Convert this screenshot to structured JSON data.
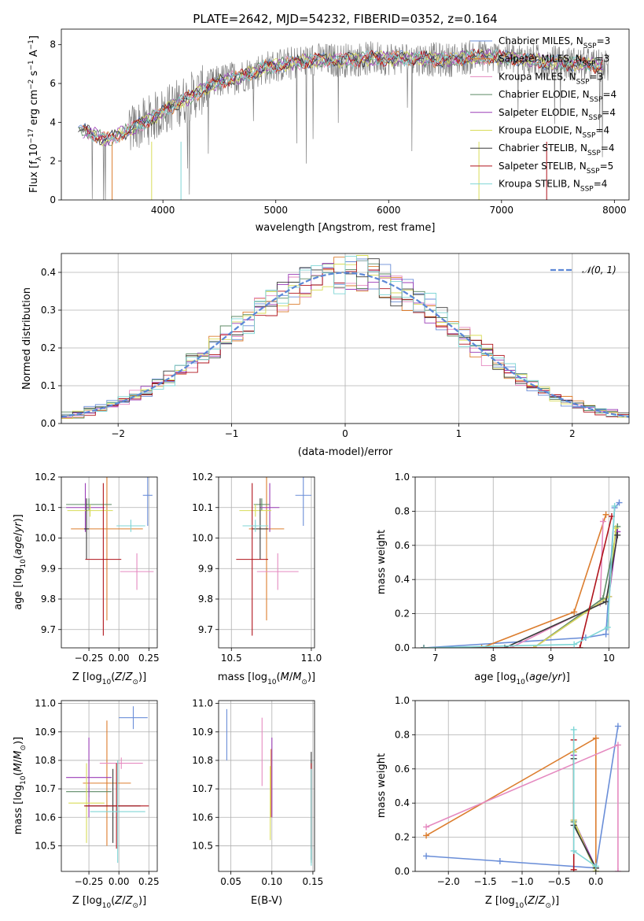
{
  "figure_title": "PLATE=2642, MJD=54232, FIBERID=0352, z=0.164",
  "colors": {
    "Chabrier MILES": "#6a8ed8",
    "Salpeter MILES": "#dc7d2e",
    "Kroupa MILES": "#e58ac0",
    "Chabrier ELODIE": "#5c8a64",
    "Salpeter ELODIE": "#9b3db7",
    "Kroupa ELODIE": "#d8dc58",
    "Chabrier STELIB": "#3a3a3a",
    "Salpeter STELIB": "#b0141c",
    "Kroupa STELIB": "#7fd6d6",
    "data": "#808080",
    "gaussian": "#5b87d6"
  },
  "chart_data": [
    {
      "id": "spectrum",
      "type": "line",
      "title": "PLATE=2642, MJD=54232, FIBERID=0352, z=0.164",
      "xlabel": "wavelength [Angstrom, rest frame]",
      "ylabel": "Flux [fλ10⁻¹⁷ erg cm⁻² s⁻¹ A⁻¹]",
      "xlim": [
        3100,
        8130
      ],
      "ylim": [
        0,
        8.8
      ],
      "xticks": [
        4000,
        5000,
        6000,
        7000,
        8000
      ],
      "yticks": [
        0,
        2,
        4,
        6,
        8
      ],
      "grid": false,
      "legend_position": "right",
      "legend": [
        {
          "label": "Chabrier MILES, N",
          "sub": "SSP",
          "tail": "=3"
        },
        {
          "label": "Salpeter MILES, N",
          "sub": "SSP",
          "tail": "=3"
        },
        {
          "label": "Kroupa MILES, N",
          "sub": "SSP",
          "tail": "=3"
        },
        {
          "label": "Chabrier ELODIE, N",
          "sub": "SSP",
          "tail": "=4"
        },
        {
          "label": "Salpeter ELODIE, N",
          "sub": "SSP",
          "tail": "=4"
        },
        {
          "label": "Kroupa ELODIE, N",
          "sub": "SSP",
          "tail": "=4"
        },
        {
          "label": "Chabrier STELIB, N",
          "sub": "SSP",
          "tail": "=4"
        },
        {
          "label": "Salpeter STELIB, N",
          "sub": "SSP",
          "tail": "=5"
        },
        {
          "label": "Kroupa STELIB, N",
          "sub": "SSP",
          "tail": "=4"
        }
      ],
      "continuum": {
        "x": [
          3250,
          3500,
          3700,
          3900,
          4100,
          4300,
          4500,
          4700,
          4900,
          5100,
          5300,
          5600,
          5900,
          6200,
          6500,
          6800,
          7100,
          7400,
          7700,
          7900
        ],
        "y": [
          3.7,
          3.1,
          3.6,
          4.2,
          4.9,
          5.5,
          6.1,
          6.4,
          6.8,
          7.0,
          7.2,
          7.2,
          7.3,
          7.3,
          7.2,
          7.4,
          7.3,
          7.1,
          7.0,
          6.9
        ]
      }
    },
    {
      "id": "residuals",
      "type": "histogram",
      "xlabel": "(data-model)/error",
      "ylabel": "Normed distribution",
      "xlim": [
        -2.5,
        2.5
      ],
      "ylim": [
        0,
        0.45
      ],
      "xticks": [
        -2,
        -1,
        0,
        1,
        2
      ],
      "yticks": [
        0.0,
        0.1,
        0.2,
        0.3,
        0.4
      ],
      "grid": true,
      "legend_position": "top-right",
      "reference_label": "𝒩(0, 1)",
      "reference": {
        "mean": 0,
        "sigma": 1
      }
    },
    {
      "id": "age-vs-Z",
      "type": "errorbar",
      "xlabel": "Z [log₁₀(Z/Z⊙)]",
      "ylabel": "age  [log₁₀(age/yr)]",
      "xlim": [
        -0.48,
        0.32
      ],
      "ylim": [
        9.64,
        10.2
      ],
      "xticks": [
        -0.25,
        0.0,
        0.25
      ],
      "yticks": [
        9.7,
        9.8,
        9.9,
        10.0,
        10.1,
        10.2
      ],
      "grid": true,
      "points": [
        {
          "model": "Chabrier MILES",
          "x": 0.24,
          "xerr": 0.04,
          "y": 10.14,
          "yerr": 0.1
        },
        {
          "model": "Salpeter MILES",
          "x": -0.1,
          "xerr": 0.3,
          "y": 10.03,
          "yerr": 0.3
        },
        {
          "model": "Kroupa MILES",
          "x": 0.15,
          "xerr": 0.14,
          "y": 9.89,
          "yerr": 0.06
        },
        {
          "model": "Chabrier ELODIE",
          "x": -0.25,
          "xerr": 0.19,
          "y": 10.11,
          "yerr": 0.02
        },
        {
          "model": "Salpeter ELODIE",
          "x": -0.28,
          "xerr": 0.16,
          "y": 10.1,
          "yerr": 0.08
        },
        {
          "model": "Kroupa ELODIE",
          "x": -0.24,
          "xerr": 0.19,
          "y": 10.09,
          "yerr": 0.02
        },
        {
          "model": "Chabrier STELIB",
          "x": -0.27,
          "xerr": 0.02,
          "y": 10.03,
          "yerr": 0.1
        },
        {
          "model": "Salpeter STELIB",
          "x": -0.13,
          "xerr": 0.15,
          "y": 9.93,
          "yerr": 0.25
        },
        {
          "model": "Kroupa STELIB",
          "x": 0.1,
          "xerr": 0.12,
          "y": 10.04,
          "yerr": 0.02
        }
      ]
    },
    {
      "id": "age-vs-mass",
      "type": "errorbar",
      "xlabel": "mass [log₁₀(M/M⊙)]",
      "ylabel": "",
      "xlim": [
        10.42,
        11.02
      ],
      "ylim": [
        9.64,
        10.2
      ],
      "xticks": [
        10.5,
        11.0
      ],
      "yticks": [
        9.7,
        9.8,
        9.9,
        10.0,
        10.1,
        10.2
      ],
      "grid": true,
      "points": [
        {
          "model": "Chabrier MILES",
          "x": 10.95,
          "xerr": 0.05,
          "y": 10.14,
          "yerr": 0.1
        },
        {
          "model": "Salpeter MILES",
          "x": 10.72,
          "xerr": 0.11,
          "y": 10.03,
          "yerr": 0.3
        },
        {
          "model": "Kroupa MILES",
          "x": 10.79,
          "xerr": 0.13,
          "y": 9.89,
          "yerr": 0.06
        },
        {
          "model": "Chabrier ELODIE",
          "x": 10.69,
          "xerr": 0.05,
          "y": 10.11,
          "yerr": 0.02
        },
        {
          "model": "Salpeter ELODIE",
          "x": 10.74,
          "xerr": 0.06,
          "y": 10.1,
          "yerr": 0.08
        },
        {
          "model": "Kroupa ELODIE",
          "x": 10.65,
          "xerr": 0.1,
          "y": 10.09,
          "yerr": 0.02
        },
        {
          "model": "Chabrier STELIB",
          "x": 10.68,
          "xerr": 0.05,
          "y": 10.03,
          "yerr": 0.1
        },
        {
          "model": "Salpeter STELIB",
          "x": 10.63,
          "xerr": 0.1,
          "y": 9.93,
          "yerr": 0.25
        },
        {
          "model": "Kroupa STELIB",
          "x": 10.65,
          "xerr": 0.08,
          "y": 10.04,
          "yerr": 0.02
        }
      ]
    },
    {
      "id": "mass-weight-vs-age",
      "type": "line",
      "xlabel": "age  [log₁₀(age/yr)]",
      "ylabel": "mass weight",
      "xlim": [
        6.65,
        10.35
      ],
      "ylim": [
        0,
        1.0
      ],
      "xticks": [
        7,
        8,
        9,
        10
      ],
      "yticks": [
        0.0,
        0.2,
        0.4,
        0.6,
        0.8,
        1.0
      ],
      "grid": true,
      "series": [
        {
          "model": "Chabrier MILES",
          "x": [
            6.8,
            9.6,
            9.95,
            10.1,
            10.18
          ],
          "y": [
            0.0,
            0.06,
            0.08,
            0.82,
            0.85
          ]
        },
        {
          "model": "Salpeter MILES",
          "x": [
            6.8,
            7.8,
            9.4,
            9.95
          ],
          "y": [
            0.0,
            0.0,
            0.21,
            0.78
          ]
        },
        {
          "model": "Kroupa MILES",
          "x": [
            6.8,
            8.3,
            9.85,
            9.9
          ],
          "y": [
            0.0,
            0.0,
            0.26,
            0.74
          ]
        },
        {
          "model": "Chabrier ELODIE",
          "x": [
            6.8,
            8.7,
            9.9,
            10.15
          ],
          "y": [
            0.0,
            0.0,
            0.29,
            0.71
          ]
        },
        {
          "model": "Salpeter ELODIE",
          "x": [
            6.8,
            8.7,
            10.0,
            10.15
          ],
          "y": [
            0.0,
            0.0,
            0.3,
            0.68
          ]
        },
        {
          "model": "Kroupa ELODIE",
          "x": [
            6.8,
            8.7,
            10.0,
            10.12
          ],
          "y": [
            0.0,
            0.0,
            0.3,
            0.7
          ]
        },
        {
          "model": "Chabrier STELIB",
          "x": [
            6.8,
            8.2,
            9.95,
            10.15
          ],
          "y": [
            0.0,
            0.0,
            0.27,
            0.66
          ]
        },
        {
          "model": "Salpeter STELIB",
          "x": [
            6.8,
            9.5,
            10.05
          ],
          "y": [
            0.0,
            0.0,
            0.77
          ]
        },
        {
          "model": "Kroupa STELIB",
          "x": [
            6.8,
            9.4,
            9.98,
            10.1
          ],
          "y": [
            0.0,
            0.02,
            0.12,
            0.83
          ]
        }
      ]
    },
    {
      "id": "mass-vs-Z",
      "type": "errorbar",
      "xlabel": "Z [log₁₀(Z/Z⊙)]",
      "ylabel": "mass [log₁₀(M/M⊙)]",
      "xlim": [
        -0.48,
        0.32
      ],
      "ylim": [
        10.41,
        11.01
      ],
      "xticks": [
        -0.25,
        0.0,
        0.25
      ],
      "yticks": [
        10.5,
        10.6,
        10.7,
        10.8,
        10.9,
        11.0
      ],
      "grid": true,
      "points": [
        {
          "model": "Chabrier MILES",
          "x": 0.12,
          "xerr": 0.12,
          "y": 10.95,
          "yerr": 0.04
        },
        {
          "model": "Salpeter MILES",
          "x": -0.1,
          "xerr": 0.2,
          "y": 10.72,
          "yerr": 0.22
        },
        {
          "model": "Kroupa MILES",
          "x": 0.02,
          "xerr": 0.18,
          "y": 10.79,
          "yerr": 0.02
        },
        {
          "model": "Chabrier ELODIE",
          "x": -0.25,
          "xerr": 0.19,
          "y": 10.69,
          "yerr": 0.02
        },
        {
          "model": "Salpeter ELODIE",
          "x": -0.25,
          "xerr": 0.19,
          "y": 10.74,
          "yerr": 0.14
        },
        {
          "model": "Kroupa ELODIE",
          "x": -0.27,
          "xerr": 0.15,
          "y": 10.65,
          "yerr": 0.14
        },
        {
          "model": "Chabrier STELIB",
          "x": -0.05,
          "xerr": 0.23,
          "y": 10.64,
          "yerr": 0.13
        },
        {
          "model": "Salpeter STELIB",
          "x": -0.02,
          "xerr": 0.27,
          "y": 10.64,
          "yerr": 0.15
        },
        {
          "model": "Kroupa STELIB",
          "x": -0.01,
          "xerr": 0.23,
          "y": 10.62,
          "yerr": 0.18
        }
      ]
    },
    {
      "id": "mass-vs-EBV",
      "type": "errorbar",
      "xlabel": "E(B-V)",
      "ylabel": "",
      "xlim": [
        0.035,
        0.152
      ],
      "ylim": [
        10.41,
        11.01
      ],
      "xticks": [
        0.05,
        0.1,
        0.15
      ],
      "yticks": [
        10.5,
        10.6,
        10.7,
        10.8,
        10.9,
        11.0
      ],
      "grid": true,
      "points": [
        {
          "model": "Chabrier MILES",
          "x": 0.045,
          "xerr": 0,
          "y": 10.89,
          "yerr": 0.09
        },
        {
          "model": "Salpeter MILES",
          "x": 0.099,
          "xerr": 0,
          "y": 10.72,
          "yerr": 0.12
        },
        {
          "model": "Kroupa MILES",
          "x": 0.088,
          "xerr": 0,
          "y": 10.83,
          "yerr": 0.12
        },
        {
          "model": "Chabrier ELODIE",
          "x": 0.148,
          "xerr": 0,
          "y": 10.62,
          "yerr": 0.18
        },
        {
          "model": "Salpeter ELODIE",
          "x": 0.1,
          "xerr": 0,
          "y": 10.74,
          "yerr": 0.14
        },
        {
          "model": "Kroupa ELODIE",
          "x": 0.098,
          "xerr": 0,
          "y": 10.65,
          "yerr": 0.13
        },
        {
          "model": "Chabrier STELIB",
          "x": 0.148,
          "xerr": 0,
          "y": 10.64,
          "yerr": 0.19
        },
        {
          "model": "Salpeter STELIB",
          "x": 0.148,
          "xerr": 0,
          "y": 10.64,
          "yerr": 0.15
        },
        {
          "model": "Kroupa STELIB",
          "x": 0.148,
          "xerr": 0,
          "y": 10.6,
          "yerr": 0.17
        }
      ]
    },
    {
      "id": "mass-weight-vs-Z",
      "type": "line",
      "xlabel": "Z [log₁₀(Z/Z⊙)]",
      "ylabel": "mass weight",
      "xlim": [
        -2.45,
        0.45
      ],
      "ylim": [
        0,
        1.0
      ],
      "xticks": [
        -2.0,
        -1.5,
        -1.0,
        -0.5,
        0.0
      ],
      "yticks": [
        0.0,
        0.2,
        0.4,
        0.6,
        0.8,
        1.0
      ],
      "grid": true,
      "series": [
        {
          "model": "Chabrier MILES",
          "x": [
            -2.3,
            -1.3,
            0.0,
            0.3
          ],
          "y": [
            0.09,
            0.06,
            0.02,
            0.85
          ]
        },
        {
          "model": "Salpeter MILES",
          "x": [
            -2.3,
            0.0,
            0.0
          ],
          "y": [
            0.21,
            0.78,
            0.0
          ]
        },
        {
          "model": "Kroupa MILES",
          "x": [
            -2.3,
            0.3,
            0.3
          ],
          "y": [
            0.26,
            0.74,
            0.0
          ]
        },
        {
          "model": "Chabrier ELODIE",
          "x": [
            -0.3,
            -0.3,
            0.0
          ],
          "y": [
            0.7,
            0.29,
            0.0
          ]
        },
        {
          "model": "Salpeter ELODIE",
          "x": [
            -0.3,
            -0.3,
            0.0
          ],
          "y": [
            0.68,
            0.3,
            0.02
          ]
        },
        {
          "model": "Kroupa ELODIE",
          "x": [
            -0.3,
            -0.3,
            0.0
          ],
          "y": [
            0.7,
            0.3,
            0.0
          ]
        },
        {
          "model": "Chabrier STELIB",
          "x": [
            -0.3,
            -0.3,
            0.0
          ],
          "y": [
            0.66,
            0.27,
            0.02
          ]
        },
        {
          "model": "Salpeter STELIB",
          "x": [
            -0.3,
            -0.3
          ],
          "y": [
            0.77,
            0.01
          ]
        },
        {
          "model": "Kroupa STELIB",
          "x": [
            -0.3,
            -0.3,
            0.0
          ],
          "y": [
            0.83,
            0.12,
            0.03
          ]
        }
      ]
    }
  ]
}
